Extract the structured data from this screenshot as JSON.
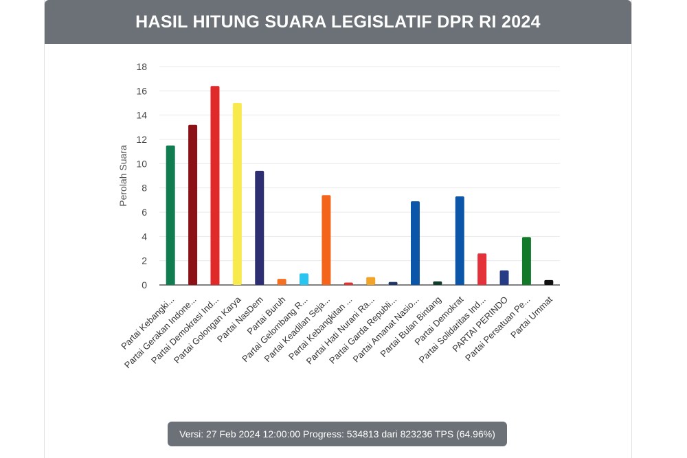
{
  "header": {
    "title": "HASIL HITUNG SUARA LEGISLATIF DPR RI 2024"
  },
  "footer": {
    "text": "Versi: 27 Feb 2024 12:00:00 Progress: 534813 dari 823236 TPS (64.96%)"
  },
  "colors": {
    "header_bg": "#6c7177",
    "grid": "#e8e8e8",
    "axis": "#333333"
  },
  "chart_data": {
    "type": "bar",
    "title": "HASIL HITUNG SUARA LEGISLATIF DPR RI 2024",
    "xlabel": "",
    "ylabel": "Perolah Suara",
    "ylim": [
      0,
      18
    ],
    "yticks": [
      0,
      2,
      4,
      6,
      8,
      10,
      12,
      14,
      16,
      18
    ],
    "grid": true,
    "categories": [
      "Partai Kebangki...",
      "Partai Gerakan Indone...",
      "Partai Demokrasi Ind...",
      "Partai Golongan Karya",
      "Partai NasDem",
      "Partai Buruh",
      "Partai Gelombang R...",
      "Partai Keadilan Seja...",
      "Partai Kebangkitan ...",
      "Partai Hati Nurani Ra...",
      "Partai Garda Republi...",
      "Partai Amanat Nasio...",
      "Partai Bulan Bintang",
      "Partai Demokrat",
      "Partai Solidaritas Ind...",
      "PARTAI PERINDO",
      "Partai Persatuan Pe...",
      "Partai Ummat"
    ],
    "values": [
      11.5,
      13.2,
      16.4,
      15.0,
      9.4,
      0.5,
      0.95,
      7.4,
      0.2,
      0.65,
      0.25,
      6.9,
      0.3,
      7.3,
      2.6,
      1.2,
      3.95,
      0.4
    ],
    "bar_colors": [
      "#107c50",
      "#8b1116",
      "#e02a2a",
      "#f8ea4c",
      "#2d2f72",
      "#f36f21",
      "#29c4f0",
      "#f4651b",
      "#e53030",
      "#f0a42a",
      "#1e3566",
      "#0b56a8",
      "#123d2a",
      "#0b56a8",
      "#e4323b",
      "#263d86",
      "#12782a",
      "#111111"
    ]
  }
}
